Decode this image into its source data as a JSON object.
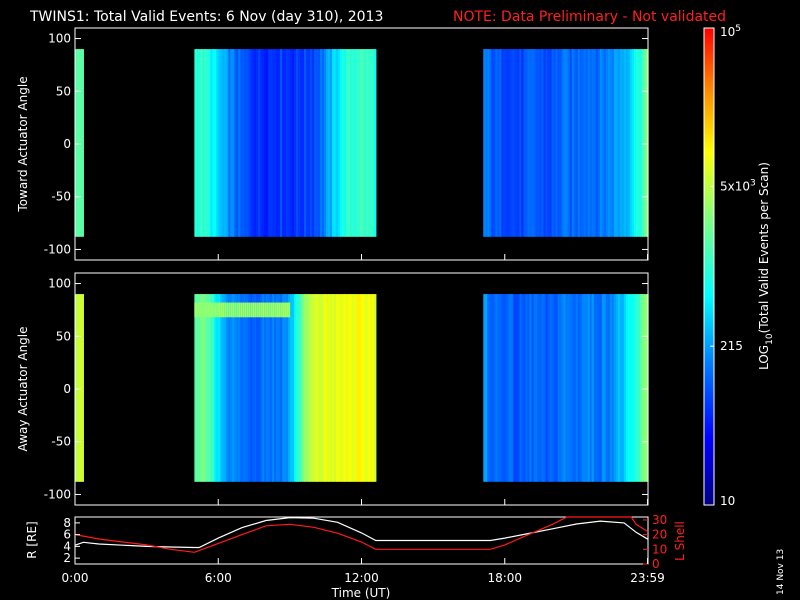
{
  "header": {
    "title": "TWINS1: Total Valid Events:  6 Nov (day 310), 2013",
    "note": "NOTE: Data Preliminary - Not validated"
  },
  "chart_data": [
    {
      "type": "heatmap",
      "ylabel": "Toward Actuator Angle",
      "ylim": [
        -110,
        110
      ],
      "yticks": [
        "100",
        "50",
        "0",
        "-50",
        "-100"
      ],
      "data_extent": [
        -88,
        90
      ],
      "intervals": [
        {
          "start": 0.0,
          "end": 0.35,
          "level": 0.55
        },
        {
          "start": 5.0,
          "end": 12.6,
          "profile": [
            0.5,
            0.5,
            0.45,
            0.38,
            0.32,
            0.28,
            0.24,
            0.22,
            0.2,
            0.2,
            0.21,
            0.22,
            0.2,
            0.21,
            0.22,
            0.24,
            0.28,
            0.34,
            0.42,
            0.48,
            0.5,
            0.52,
            0.5,
            0.48
          ]
        },
        {
          "start": 17.1,
          "end": 24.0,
          "profile": [
            0.3,
            0.26,
            0.24,
            0.25,
            0.23,
            0.22,
            0.24,
            0.26,
            0.24,
            0.23,
            0.25,
            0.28,
            0.26,
            0.27,
            0.3,
            0.29,
            0.28,
            0.3,
            0.32,
            0.35,
            0.38,
            0.45,
            0.52,
            0.6
          ]
        }
      ]
    },
    {
      "type": "heatmap",
      "ylabel": "Away Actuator Angle",
      "ylim": [
        -110,
        110
      ],
      "yticks": [
        "100",
        "50",
        "0",
        "-50",
        "-100"
      ],
      "data_extent": [
        -88,
        90
      ],
      "intervals": [
        {
          "start": 0.0,
          "end": 0.35,
          "level": 0.7
        },
        {
          "start": 5.0,
          "end": 12.6,
          "profile": [
            0.58,
            0.56,
            0.52,
            0.4,
            0.34,
            0.3,
            0.28,
            0.27,
            0.28,
            0.3,
            0.29,
            0.3,
            0.34,
            0.5,
            0.62,
            0.68,
            0.7,
            0.72,
            0.7,
            0.72,
            0.73,
            0.72,
            0.73,
            0.72
          ],
          "top_band": {
            "from": 68,
            "to": 82,
            "level": 0.62
          }
        },
        {
          "start": 17.1,
          "end": 24.0,
          "profile": [
            0.32,
            0.28,
            0.26,
            0.28,
            0.25,
            0.24,
            0.26,
            0.28,
            0.25,
            0.24,
            0.27,
            0.3,
            0.28,
            0.28,
            0.31,
            0.3,
            0.29,
            0.3,
            0.33,
            0.36,
            0.4,
            0.46,
            0.55,
            0.66
          ]
        }
      ]
    },
    {
      "type": "line",
      "ylabel": "R [RE]",
      "y2label": "L Shell",
      "xlabel": "Time (UT)",
      "xticks": [
        {
          "t": 0,
          "label": "0:00"
        },
        {
          "t": 6,
          "label": "6:00"
        },
        {
          "t": 12,
          "label": "12:00"
        },
        {
          "t": 18,
          "label": "18:00"
        },
        {
          "t": 23.98,
          "label": "23:59"
        }
      ],
      "ylim": [
        1,
        9
      ],
      "yticks": [
        "8",
        "6",
        "4",
        "2"
      ],
      "y2lim": [
        0,
        32
      ],
      "y2ticks": [
        "30",
        "20",
        "10",
        "0"
      ],
      "series": [
        {
          "x": [
            0,
            0.35,
            1,
            2,
            3,
            4,
            5,
            5.2,
            6,
            7,
            8,
            9,
            10,
            11,
            12,
            12.6,
            13,
            14,
            15,
            16,
            17,
            17.4,
            18,
            19,
            20,
            21,
            22,
            23,
            23.5,
            24
          ],
          "y": [
            4.2,
            4.7,
            4.4,
            4.2,
            4.0,
            3.9,
            3.8,
            3.8,
            5.4,
            7.2,
            8.4,
            8.9,
            8.8,
            8.1,
            6.3,
            5.0,
            5.0,
            5.0,
            5.0,
            5.0,
            5.0,
            5.0,
            5.4,
            6.2,
            7.0,
            7.8,
            8.3,
            8.0,
            6.4,
            5.2
          ],
          "color": "#ffffff",
          "axis": "left"
        },
        {
          "x": [
            0,
            0.35,
            1,
            2,
            3,
            4,
            5,
            6,
            7,
            8,
            9,
            10,
            11,
            12,
            12.6,
            13,
            14,
            15,
            16,
            17,
            17.4,
            18,
            19,
            20,
            20.6,
            21.5,
            22.5,
            23.3,
            23.5,
            24
          ],
          "y": [
            20,
            19,
            17,
            15,
            13,
            10,
            8,
            14,
            20,
            26,
            27,
            25,
            21,
            15,
            10,
            10,
            10,
            10,
            10,
            10,
            10,
            13,
            20,
            27,
            32,
            33,
            33,
            32,
            27,
            22
          ],
          "color": "#ff1a1a",
          "axis": "right"
        }
      ]
    }
  ],
  "colorbar": {
    "label": "LOG10(Total Valid Events per Scan)",
    "label_main": "LOG",
    "label_sub": "10",
    "label_rest": "(Total Valid Events per Scan)",
    "ticks": [
      {
        "label": "10",
        "frac": 0.0
      },
      {
        "label": "215",
        "frac": 0.333
      },
      {
        "label": "5x10",
        "sup": "3",
        "frac": 0.668
      },
      {
        "label": "10",
        "sup": "5",
        "frac": 1.0
      }
    ],
    "colors": [
      "#000080",
      "#0000ff",
      "#0080ff",
      "#00ffff",
      "#80ff80",
      "#ffff00",
      "#ff8000",
      "#ff0000"
    ]
  },
  "footer": {
    "date_stamp": "14 Nov 13"
  }
}
